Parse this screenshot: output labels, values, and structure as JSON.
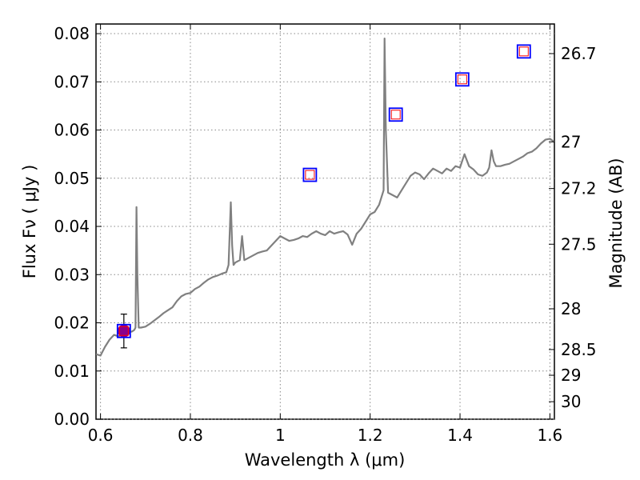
{
  "chart_data": {
    "type": "line",
    "title": "",
    "xlabel": "Wavelength  λ (μm)",
    "ylabel": "Flux  Fν  ( μJy )",
    "y2label": "Magnitude (AB)",
    "xlim": [
      0.59,
      1.61
    ],
    "ylim": [
      0.0,
      0.082
    ],
    "grid": true,
    "x_ticks": [
      0.6,
      0.8,
      1.0,
      1.2,
      1.4,
      1.6
    ],
    "x_tick_labels": [
      "0.6",
      "0.8",
      "1",
      "1.2",
      "1.4",
      "1.6"
    ],
    "y_ticks": [
      0.0,
      0.01,
      0.02,
      0.03,
      0.04,
      0.05,
      0.06,
      0.07,
      0.08
    ],
    "y_tick_labels": [
      "0.00",
      "0.01",
      "0.02",
      "0.03",
      "0.04",
      "0.05",
      "0.06",
      "0.07",
      "0.08"
    ],
    "y2_ticks": [
      26.7,
      27.0,
      27.2,
      27.5,
      28.0,
      28.5,
      29.0,
      30.0
    ],
    "y2_tick_labels": [
      "26.7",
      "27",
      "27.2",
      "27.5",
      "28",
      "28.5",
      "29",
      "30"
    ],
    "colors": {
      "spectrum": "#808080",
      "filled_marker": "#8b008b",
      "square_outer": "#0000ff",
      "square_inner": "#ff0000",
      "errorbar": "#000000",
      "grid": "#888888"
    },
    "series": [
      {
        "kind": "spectrum",
        "x": [
          0.59,
          0.6,
          0.61,
          0.62,
          0.63,
          0.64,
          0.65,
          0.66,
          0.67,
          0.675,
          0.678,
          0.68,
          0.682,
          0.685,
          0.69,
          0.7,
          0.71,
          0.72,
          0.73,
          0.74,
          0.75,
          0.76,
          0.77,
          0.78,
          0.79,
          0.8,
          0.81,
          0.82,
          0.83,
          0.84,
          0.85,
          0.86,
          0.87,
          0.88,
          0.885,
          0.89,
          0.893,
          0.896,
          0.9,
          0.91,
          0.915,
          0.92,
          0.93,
          0.94,
          0.95,
          0.96,
          0.97,
          0.98,
          0.99,
          1.0,
          1.01,
          1.02,
          1.03,
          1.04,
          1.05,
          1.06,
          1.07,
          1.08,
          1.09,
          1.1,
          1.11,
          1.12,
          1.13,
          1.14,
          1.15,
          1.16,
          1.17,
          1.18,
          1.19,
          1.2,
          1.21,
          1.22,
          1.225,
          1.23,
          1.232,
          1.235,
          1.24,
          1.25,
          1.26,
          1.27,
          1.28,
          1.29,
          1.3,
          1.31,
          1.32,
          1.33,
          1.34,
          1.35,
          1.36,
          1.37,
          1.38,
          1.39,
          1.4,
          1.41,
          1.42,
          1.43,
          1.44,
          1.45,
          1.46,
          1.465,
          1.47,
          1.475,
          1.48,
          1.49,
          1.5,
          1.51,
          1.52,
          1.53,
          1.54,
          1.55,
          1.56,
          1.57,
          1.58,
          1.59,
          1.6,
          1.61
        ],
        "y": [
          0.0135,
          0.0132,
          0.015,
          0.0165,
          0.0175,
          0.0172,
          0.0178,
          0.018,
          0.0182,
          0.0185,
          0.019,
          0.044,
          0.03,
          0.019,
          0.019,
          0.0192,
          0.0198,
          0.0205,
          0.0212,
          0.022,
          0.0226,
          0.0232,
          0.0245,
          0.0255,
          0.026,
          0.0262,
          0.027,
          0.0275,
          0.0283,
          0.029,
          0.0295,
          0.0298,
          0.0302,
          0.0305,
          0.032,
          0.045,
          0.036,
          0.032,
          0.0325,
          0.033,
          0.038,
          0.033,
          0.0335,
          0.034,
          0.0345,
          0.0348,
          0.035,
          0.036,
          0.037,
          0.038,
          0.0375,
          0.037,
          0.0372,
          0.0375,
          0.038,
          0.0378,
          0.0385,
          0.039,
          0.0385,
          0.0382,
          0.039,
          0.0385,
          0.0388,
          0.039,
          0.0383,
          0.0362,
          0.0385,
          0.0395,
          0.041,
          0.0425,
          0.043,
          0.0445,
          0.046,
          0.0475,
          0.079,
          0.06,
          0.047,
          0.0465,
          0.046,
          0.0475,
          0.049,
          0.0505,
          0.0512,
          0.0508,
          0.0498,
          0.051,
          0.052,
          0.0515,
          0.051,
          0.052,
          0.0515,
          0.0525,
          0.0522,
          0.055,
          0.0525,
          0.0518,
          0.0508,
          0.0505,
          0.0512,
          0.0522,
          0.0558,
          0.0535,
          0.0525,
          0.0525,
          0.0528,
          0.053,
          0.0535,
          0.054,
          0.0545,
          0.0552,
          0.0555,
          0.0562,
          0.0572,
          0.058,
          0.0582,
          0.0575
        ]
      },
      {
        "kind": "filled-marker-with-errorbar",
        "x": [
          0.652
        ],
        "y": [
          0.0183
        ],
        "yerr_low": [
          0.0035
        ],
        "yerr_high": [
          0.0035
        ]
      },
      {
        "kind": "open-squares",
        "x": [
          0.652,
          1.066,
          1.257,
          1.405,
          1.542
        ],
        "y": [
          0.0183,
          0.0507,
          0.0632,
          0.0705,
          0.0763
        ]
      }
    ]
  }
}
